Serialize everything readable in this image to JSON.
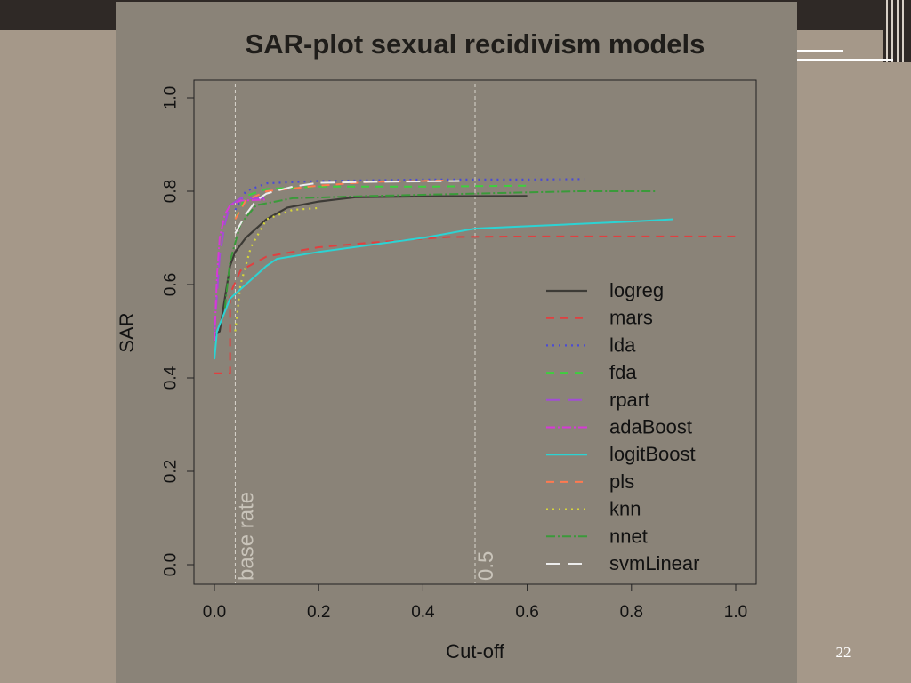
{
  "slide": {
    "number": "22"
  },
  "colors": {
    "background": "#a59889",
    "panel": "#8a8378",
    "header": "#2f2926"
  },
  "chart_data": {
    "type": "line",
    "title": "SAR-plot  sexual recidivism models",
    "xlabel": "Cut-off",
    "ylabel": "SAR",
    "xlim": [
      0.0,
      1.0
    ],
    "ylim": [
      0.0,
      1.0
    ],
    "x_ticks": [
      "0.0",
      "0.2",
      "0.4",
      "0.6",
      "0.8",
      "1.0"
    ],
    "y_ticks": [
      "0.0",
      "0.2",
      "0.4",
      "0.6",
      "0.8",
      "1.0"
    ],
    "grid": false,
    "legend_position": "bottom-right",
    "reference_lines": [
      {
        "x": 0.04,
        "label": "base rate"
      },
      {
        "x": 0.5,
        "label": "0.5"
      }
    ],
    "series": [
      {
        "name": "logreg",
        "color": "#3d3b36",
        "dash": "solid",
        "width": 2.2,
        "points": [
          [
            0.0,
            0.49
          ],
          [
            0.01,
            0.5
          ],
          [
            0.02,
            0.57
          ],
          [
            0.03,
            0.64
          ],
          [
            0.04,
            0.67
          ],
          [
            0.06,
            0.7
          ],
          [
            0.08,
            0.72
          ],
          [
            0.1,
            0.74
          ],
          [
            0.14,
            0.765
          ],
          [
            0.2,
            0.778
          ],
          [
            0.27,
            0.787
          ],
          [
            0.4,
            0.789
          ],
          [
            0.6,
            0.79
          ]
        ]
      },
      {
        "name": "mars",
        "color": "#e04040",
        "dash": "9,7",
        "width": 2,
        "points": [
          [
            0.0,
            0.41
          ],
          [
            0.03,
            0.41
          ],
          [
            0.03,
            0.58
          ],
          [
            0.05,
            0.63
          ],
          [
            0.1,
            0.66
          ],
          [
            0.2,
            0.68
          ],
          [
            0.3,
            0.69
          ],
          [
            0.45,
            0.702
          ],
          [
            0.6,
            0.703
          ],
          [
            1.0,
            0.703
          ]
        ]
      },
      {
        "name": "lda",
        "color": "#4a4ad6",
        "dash": "2,5",
        "width": 2.2,
        "points": [
          [
            0.04,
            0.76
          ],
          [
            0.06,
            0.8
          ],
          [
            0.1,
            0.817
          ],
          [
            0.2,
            0.822
          ],
          [
            0.4,
            0.825
          ],
          [
            0.6,
            0.825
          ],
          [
            0.71,
            0.826
          ]
        ]
      },
      {
        "name": "fda",
        "color": "#3ecf3e",
        "dash": "9,7",
        "width": 2,
        "points": [
          [
            0.04,
            0.74
          ],
          [
            0.06,
            0.79
          ],
          [
            0.1,
            0.805
          ],
          [
            0.2,
            0.81
          ],
          [
            0.4,
            0.81
          ],
          [
            0.6,
            0.812
          ]
        ]
      },
      {
        "name": "rpart",
        "color": "#a24cd6",
        "dash": "16,8",
        "width": 2,
        "points": [
          [
            0.0,
            0.5
          ],
          [
            0.01,
            0.66
          ],
          [
            0.02,
            0.73
          ],
          [
            0.03,
            0.77
          ],
          [
            0.05,
            0.785
          ],
          [
            0.1,
            0.785
          ]
        ]
      },
      {
        "name": "adaBoost",
        "color": "#d63ad6",
        "dash": "10,3,2,3",
        "width": 2,
        "points": [
          [
            0.0,
            0.48
          ],
          [
            0.005,
            0.62
          ],
          [
            0.01,
            0.7
          ],
          [
            0.02,
            0.75
          ],
          [
            0.03,
            0.77
          ],
          [
            0.05,
            0.78
          ],
          [
            0.1,
            0.782
          ]
        ]
      },
      {
        "name": "logitBoost",
        "color": "#2cd3d3",
        "dash": "solid",
        "width": 2,
        "points": [
          [
            0.0,
            0.44
          ],
          [
            0.005,
            0.5
          ],
          [
            0.03,
            0.57
          ],
          [
            0.06,
            0.6
          ],
          [
            0.1,
            0.64
          ],
          [
            0.12,
            0.655
          ],
          [
            0.2,
            0.67
          ],
          [
            0.3,
            0.685
          ],
          [
            0.4,
            0.7
          ],
          [
            0.5,
            0.72
          ],
          [
            0.6,
            0.725
          ],
          [
            0.7,
            0.73
          ],
          [
            0.8,
            0.735
          ],
          [
            0.88,
            0.74
          ]
        ]
      },
      {
        "name": "pls",
        "color": "#ff7a50",
        "dash": "9,7",
        "width": 2,
        "points": [
          [
            0.04,
            0.74
          ],
          [
            0.06,
            0.78
          ],
          [
            0.1,
            0.8
          ],
          [
            0.2,
            0.812
          ],
          [
            0.3,
            0.82
          ],
          [
            0.45,
            0.823
          ]
        ]
      },
      {
        "name": "knn",
        "color": "#d6d63a",
        "dash": "2,5",
        "width": 2.2,
        "points": [
          [
            0.04,
            0.5
          ],
          [
            0.05,
            0.6
          ],
          [
            0.07,
            0.68
          ],
          [
            0.1,
            0.74
          ],
          [
            0.15,
            0.76
          ],
          [
            0.2,
            0.764
          ]
        ]
      },
      {
        "name": "nnet",
        "color": "#3a9a3a",
        "dash": "10,3,2,3",
        "width": 2,
        "points": [
          [
            0.02,
            0.55
          ],
          [
            0.03,
            0.65
          ],
          [
            0.05,
            0.73
          ],
          [
            0.08,
            0.77
          ],
          [
            0.15,
            0.785
          ],
          [
            0.3,
            0.79
          ],
          [
            0.5,
            0.795
          ],
          [
            0.7,
            0.8
          ],
          [
            0.85,
            0.8
          ]
        ]
      },
      {
        "name": "svmLinear",
        "color": "#ececec",
        "dash": "16,8",
        "width": 2,
        "points": [
          [
            0.04,
            0.71
          ],
          [
            0.06,
            0.75
          ],
          [
            0.08,
            0.78
          ],
          [
            0.1,
            0.795
          ],
          [
            0.15,
            0.81
          ],
          [
            0.2,
            0.818
          ],
          [
            0.3,
            0.82
          ],
          [
            0.47,
            0.822
          ]
        ]
      }
    ]
  }
}
